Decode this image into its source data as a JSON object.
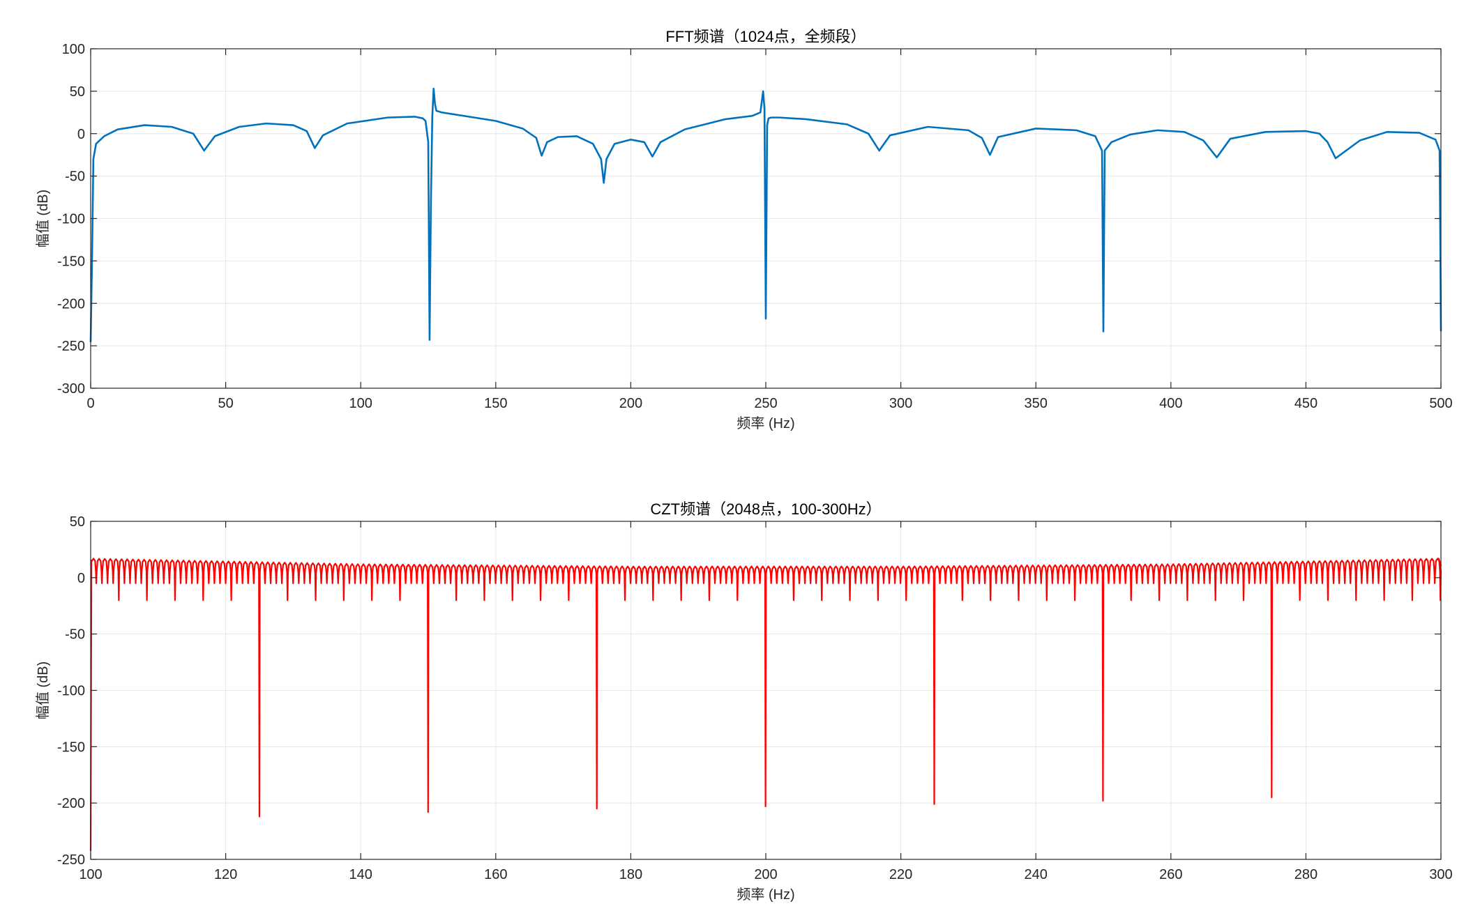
{
  "figure": {
    "background": "#ffffff"
  },
  "chart_data": [
    {
      "type": "line",
      "title": "FFT频谱（1024点，全频段）",
      "xlabel": "频率 (Hz)",
      "ylabel": "幅值 (dB)",
      "xlim": [
        0,
        500
      ],
      "ylim": [
        -300,
        100
      ],
      "xticks": [
        0,
        50,
        100,
        150,
        200,
        250,
        300,
        350,
        400,
        450,
        500
      ],
      "yticks": [
        100,
        50,
        0,
        -50,
        -100,
        -150,
        -200,
        -250,
        -300
      ],
      "grid": true,
      "legend": "none",
      "series": [
        {
          "color": "#0072BD",
          "x": [
            0,
            0.5,
            1,
            2,
            5,
            10,
            20,
            30,
            38,
            42,
            46,
            55,
            65,
            75,
            80,
            83,
            86,
            95,
            110,
            120,
            123,
            124,
            125,
            125.5,
            126,
            126.5,
            127,
            127.5,
            128,
            130,
            140,
            150,
            160,
            165,
            167,
            169,
            173,
            180,
            186,
            189,
            190,
            191,
            194,
            200,
            205,
            208,
            211,
            220,
            235,
            245,
            248,
            249,
            249.5,
            250,
            250.5,
            251,
            252,
            255,
            265,
            280,
            288,
            292,
            296,
            310,
            325,
            330,
            333,
            336,
            350,
            365,
            372,
            374.5,
            375,
            375.5,
            378,
            385,
            395,
            405,
            412,
            417,
            422,
            435,
            450,
            455,
            458,
            461,
            470,
            480,
            492,
            498,
            499.5,
            500
          ],
          "y": [
            -245,
            -150,
            -30,
            -12,
            -3,
            5,
            10,
            8,
            0,
            -20,
            -3,
            8,
            12,
            10,
            3,
            -17,
            -2,
            12,
            19,
            20,
            18,
            15,
            -10,
            -243,
            -80,
            20,
            53,
            35,
            27,
            25,
            20,
            15,
            6,
            -5,
            -26,
            -10,
            -4,
            -3,
            -12,
            -30,
            -58,
            -30,
            -12,
            -7,
            -10,
            -27,
            -10,
            5,
            17,
            21,
            25,
            50,
            30,
            -218,
            10,
            18,
            19,
            19,
            17,
            11,
            0,
            -20,
            -2,
            8,
            4,
            -5,
            -25,
            -4,
            6,
            4,
            -3,
            -20,
            -233,
            -20,
            -10,
            -1,
            4,
            2,
            -8,
            -28,
            -6,
            2,
            3,
            0,
            -10,
            -29,
            -8,
            2,
            1,
            -7,
            -20,
            -232
          ]
        }
      ]
    },
    {
      "type": "line",
      "title": "CZT频谱（2048点，100-300Hz）",
      "xlabel": "频率 (Hz)",
      "ylabel": "幅值 (dB)",
      "xlim": [
        100,
        300
      ],
      "ylim": [
        -250,
        50
      ],
      "xticks": [
        100,
        120,
        140,
        160,
        180,
        200,
        220,
        240,
        260,
        280,
        300
      ],
      "yticks": [
        50,
        0,
        -50,
        -100,
        -150,
        -200,
        -250
      ],
      "grid": true,
      "legend": "none",
      "series": [
        {
          "color": "#FF0000",
          "start_x": 100,
          "end_x": 300,
          "start_value": -242,
          "ripple_period_hz": 0.833,
          "ripple_peak_db": [
            17,
            12,
            10,
            10,
            12,
            17
          ],
          "ripple_trough_db": -5,
          "medium_dips_every_hz": 4.167,
          "medium_dip_db": -20,
          "deep_dips": [
            {
              "x": 125,
              "y": -212
            },
            {
              "x": 150,
              "y": -208
            },
            {
              "x": 175,
              "y": -205
            },
            {
              "x": 200,
              "y": -203
            },
            {
              "x": 225,
              "y": -201
            },
            {
              "x": 250,
              "y": -198
            },
            {
              "x": 275,
              "y": -195
            }
          ]
        }
      ]
    }
  ]
}
